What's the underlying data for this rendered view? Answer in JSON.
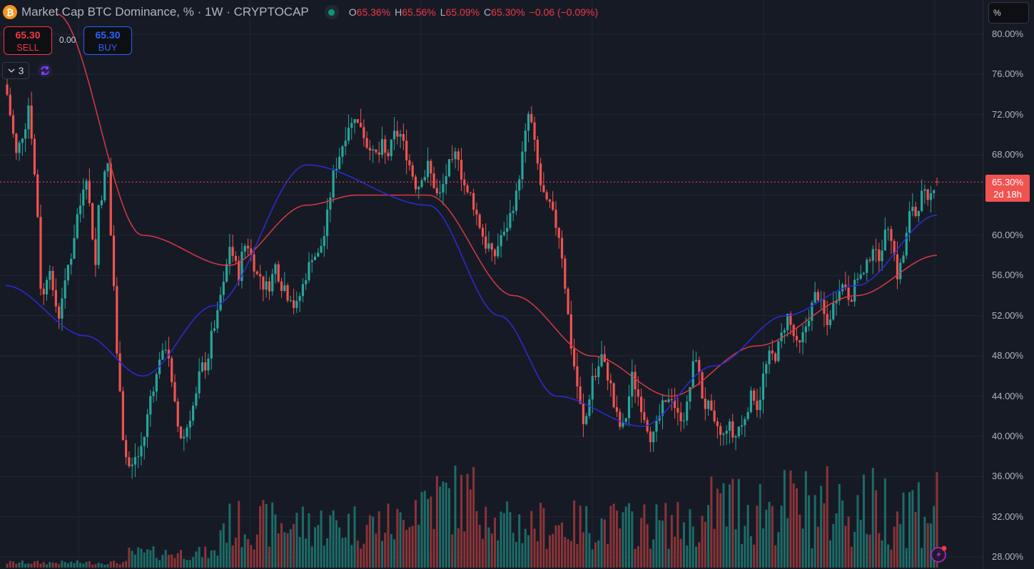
{
  "header": {
    "symbol_icon": "bitcoin-icon",
    "title": "Market Cap BTC Dominance, % · 1W · CRYPTOCAP",
    "market_status_icon": "market-open-dot-icon",
    "ohlc": {
      "open_label": "O",
      "open": "65.36%",
      "high_label": "H",
      "high": "65.56%",
      "low_label": "L",
      "low": "65.09%",
      "close_label": "C",
      "close": "65.30%",
      "change": "−0.06 (−0.09%)"
    }
  },
  "trade": {
    "sell_price": "65.30",
    "sell_label": "SELL",
    "spread": "0.00",
    "buy_price": "65.30",
    "buy_label": "BUY"
  },
  "indicators": {
    "collapse_icon": "chevron-down-icon",
    "count": "3",
    "sync_icon": "sync-icon"
  },
  "price_axis": {
    "unit": "%",
    "labels": [
      "80.00%",
      "76.00%",
      "72.00%",
      "68.00%",
      "60.00%",
      "56.00%",
      "52.00%",
      "48.00%",
      "44.00%",
      "40.00%",
      "36.00%",
      "32.00%",
      "28.00%"
    ],
    "current_price": "65.30%",
    "countdown": "2d 18h"
  },
  "colors": {
    "background": "#161a25",
    "up": "#26a69a",
    "down": "#ef5350",
    "volume_up": "#1d6b67",
    "volume_down": "#8a3437",
    "ma_fast": "#2c2cd8",
    "ma_slow": "#d63a45",
    "grid": "#232733",
    "price_line": "#f05350"
  },
  "chart_data": {
    "type": "candlestick",
    "title": "Market Cap BTC Dominance, % · 1W · CRYPTOCAP",
    "ylabel": "%",
    "ylim": [
      28,
      80
    ],
    "y_ticks": [
      80,
      76,
      72,
      68,
      64,
      60,
      56,
      52,
      48,
      44,
      40,
      36,
      32,
      28
    ],
    "last": {
      "open": 65.36,
      "high": 65.56,
      "low": 65.09,
      "close": 65.3,
      "change": -0.06,
      "change_pct": -0.09
    },
    "series": [
      {
        "name": "BTC Dominance weekly close (approx)",
        "values": [
          74,
          72,
          70,
          68,
          69,
          70,
          71,
          73,
          70,
          66,
          62,
          55,
          54,
          56,
          57,
          54,
          53,
          52,
          54,
          55,
          57,
          58,
          60,
          62,
          63,
          65,
          66,
          63,
          60,
          57,
          63,
          64,
          66,
          67,
          60,
          55,
          48,
          45,
          40,
          38,
          37,
          37,
          38,
          38,
          39,
          40,
          42,
          44,
          45,
          46,
          48,
          48,
          49,
          48,
          45,
          43,
          41,
          40,
          40,
          41,
          42,
          43,
          44,
          46,
          47,
          47,
          48,
          50,
          51,
          52,
          54,
          55,
          57,
          59,
          58,
          57,
          56,
          58,
          59,
          59,
          58,
          57,
          56,
          56,
          55,
          55,
          55,
          56,
          57,
          56,
          55,
          55,
          54,
          54,
          53,
          53,
          54,
          55,
          56,
          57,
          58,
          58,
          58,
          59,
          60,
          62,
          64,
          66,
          67,
          68,
          69,
          70,
          71,
          71,
          72,
          71,
          71,
          70,
          69,
          69,
          68,
          68,
          68,
          69,
          68,
          68,
          69,
          70,
          70,
          70,
          69,
          68,
          67,
          66,
          65,
          65,
          66,
          66,
          67,
          66,
          65,
          64,
          64,
          65,
          66,
          67,
          67,
          68,
          68,
          66,
          65,
          64,
          64,
          63,
          62,
          61,
          60,
          59,
          59,
          58,
          58,
          59,
          60,
          60,
          61,
          62,
          63,
          64,
          66,
          68,
          70,
          72,
          71,
          69,
          67,
          65,
          64,
          63,
          63,
          62,
          61,
          60,
          58,
          55,
          52,
          49,
          47,
          45,
          43,
          41,
          42,
          44,
          46,
          46,
          47,
          48,
          47,
          46,
          45,
          43,
          42,
          41,
          41,
          42,
          44,
          46,
          45,
          44,
          43,
          42,
          41,
          40,
          40,
          41,
          42,
          43,
          43,
          44,
          44,
          43,
          42,
          42,
          42,
          43,
          45,
          47,
          48,
          46,
          44,
          43,
          43,
          42,
          41,
          41,
          40,
          40,
          41,
          41,
          40,
          40,
          41,
          41,
          42,
          43,
          44,
          44,
          43,
          44,
          46,
          47,
          48,
          48,
          48,
          49,
          50,
          51,
          52,
          51,
          50,
          49,
          49,
          50,
          51,
          52,
          53,
          54,
          54,
          53,
          52,
          51,
          52,
          53,
          54,
          55,
          55,
          55,
          54,
          54,
          55,
          56,
          56,
          56,
          57,
          58,
          59,
          58,
          58,
          59,
          60,
          61,
          60,
          58,
          56,
          57,
          58,
          60,
          62,
          63,
          62,
          63,
          64,
          64,
          63,
          64,
          65,
          65.3
        ]
      },
      {
        "name": "MA fast (blue)",
        "approx": [
          [
            8,
            55
          ],
          [
            120,
            50
          ],
          [
            200,
            46
          ],
          [
            300,
            53
          ],
          [
            430,
            67
          ],
          [
            600,
            63
          ],
          [
            700,
            52
          ],
          [
            780,
            44
          ],
          [
            900,
            41
          ],
          [
            1000,
            47
          ],
          [
            1100,
            52
          ],
          [
            1200,
            55
          ],
          [
            1313,
            62
          ]
        ]
      },
      {
        "name": "MA slow (red)",
        "approx": [
          [
            80,
            82
          ],
          [
            200,
            60
          ],
          [
            320,
            57
          ],
          [
            430,
            63
          ],
          [
            500,
            64
          ],
          [
            600,
            64
          ],
          [
            720,
            54
          ],
          [
            830,
            48
          ],
          [
            940,
            44
          ],
          [
            1060,
            49
          ],
          [
            1200,
            54
          ],
          [
            1313,
            58
          ]
        ]
      }
    ],
    "volume": {
      "note": "volume bars at bottom, rising toward right side",
      "max_relative": 1.0
    },
    "grid": true
  },
  "footer": {
    "alert_icon": "lightning-bolt-icon"
  }
}
